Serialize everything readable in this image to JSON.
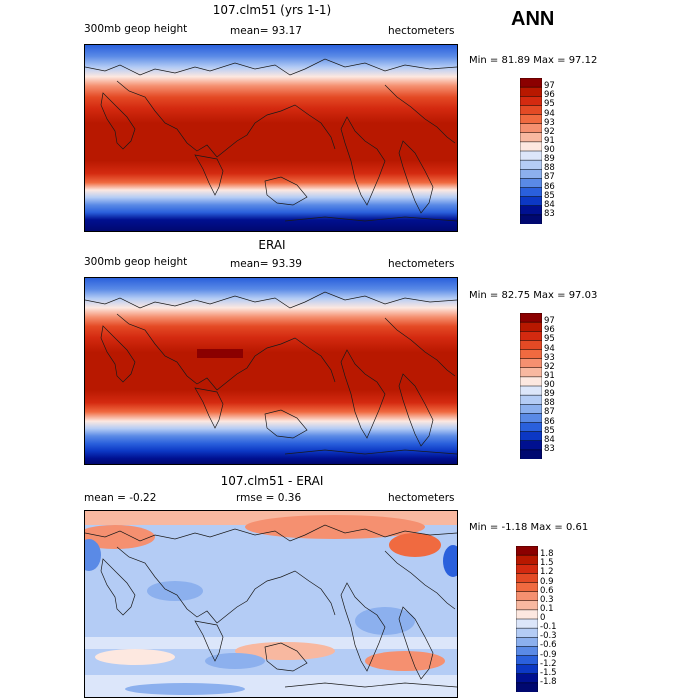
{
  "season": "ANN",
  "panels": [
    {
      "title": "107.clm51 (yrs 1-1)",
      "left_label": "300mb geop height",
      "mean_text": "mean=  93.17",
      "units": "hectometers",
      "minmax": "Min =  81.89 Max =  97.12",
      "colorbar": {
        "labels": [
          "97",
          "96",
          "95",
          "94",
          "93",
          "92",
          "91",
          "90",
          "89",
          "88",
          "87",
          "86",
          "85",
          "84",
          "83"
        ],
        "colors": [
          "#8b0000",
          "#b81800",
          "#d42a10",
          "#e44a25",
          "#f06a40",
          "#f59070",
          "#f8b8a0",
          "#fde8e0",
          "#dce6fa",
          "#b4ccf5",
          "#8cb0ee",
          "#5a8ae6",
          "#2a60dc",
          "#0c38c4",
          "#001090",
          "#000870"
        ]
      }
    },
    {
      "title": "ERAI",
      "left_label": "300mb geop height",
      "mean_text": "mean=  93.39",
      "units": "hectometers",
      "minmax": "Min =  82.75 Max =  97.03",
      "colorbar": {
        "labels": [
          "97",
          "96",
          "95",
          "94",
          "93",
          "92",
          "91",
          "90",
          "89",
          "88",
          "87",
          "86",
          "85",
          "84",
          "83"
        ],
        "colors": [
          "#8b0000",
          "#b81800",
          "#d42a10",
          "#e44a25",
          "#f06a40",
          "#f59070",
          "#f8b8a0",
          "#fde8e0",
          "#dce6fa",
          "#b4ccf5",
          "#8cb0ee",
          "#5a8ae6",
          "#2a60dc",
          "#0c38c4",
          "#001090",
          "#000870"
        ]
      }
    },
    {
      "title": "107.clm51 - ERAI",
      "left_label": "mean =   -0.22",
      "mean_text": "rmse =    0.36",
      "units": "hectometers",
      "minmax": "Min =  -1.18 Max =   0.61",
      "colorbar": {
        "labels": [
          "1.8",
          "1.5",
          "1.2",
          "0.9",
          "0.6",
          "0.3",
          "0.1",
          "0",
          "-0.1",
          "-0.3",
          "-0.6",
          "-0.9",
          "-1.2",
          "-1.5",
          "-1.8"
        ],
        "colors": [
          "#8b0000",
          "#b81800",
          "#d42a10",
          "#e44a25",
          "#f06a40",
          "#f59070",
          "#f8b8a0",
          "#fde8e0",
          "#dce6fa",
          "#b4ccf5",
          "#8cb0ee",
          "#5a8ae6",
          "#2a60dc",
          "#0c38c4",
          "#001090",
          "#000870"
        ]
      }
    }
  ]
}
